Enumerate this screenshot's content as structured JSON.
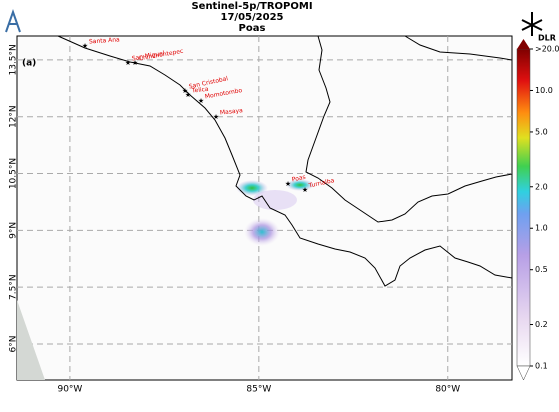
{
  "header": {
    "title": "Sentinel-5p/TROPOMI",
    "date": "17/05/2025",
    "volcano": "Poas",
    "logo": "DLR"
  },
  "map": {
    "panel": "(a)",
    "xlim": [
      -91.4,
      -78.3
    ],
    "ylim": [
      5.05,
      14.13
    ],
    "xticks": [
      {
        "value": -90,
        "label": "90°W"
      },
      {
        "value": -85,
        "label": "85°W"
      },
      {
        "value": -80,
        "label": "80°W"
      }
    ],
    "yticks": [
      {
        "value": 13.5,
        "label": "13.5°N"
      },
      {
        "value": 12,
        "label": "12°N"
      },
      {
        "value": 10.5,
        "label": "10.5°N"
      },
      {
        "value": 9,
        "label": "9°N"
      },
      {
        "value": 7.5,
        "label": "7.5°N"
      },
      {
        "value": 6,
        "label": "6°N"
      }
    ],
    "volcanoes": [
      "Santa Ana",
      "San Miguel",
      "Chinchontepec",
      "San Cristobal",
      "Telica",
      "Momotombo",
      "Masaya",
      "Poas",
      "Turrialba"
    ]
  },
  "colorbar": {
    "lim": [
      0.1,
      20
    ],
    "log": true,
    "ticks": [
      {
        "value": 20,
        "label": ">20.0"
      },
      {
        "value": 10,
        "label": "10.0"
      },
      {
        "value": 5,
        "label": "5.0"
      },
      {
        "value": 2,
        "label": "2.0"
      },
      {
        "value": 1,
        "label": "1.0"
      },
      {
        "value": 0.5,
        "label": "0.5"
      },
      {
        "value": 0.2,
        "label": "0.2"
      },
      {
        "value": 0.1,
        "label": "0.1"
      }
    ]
  }
}
